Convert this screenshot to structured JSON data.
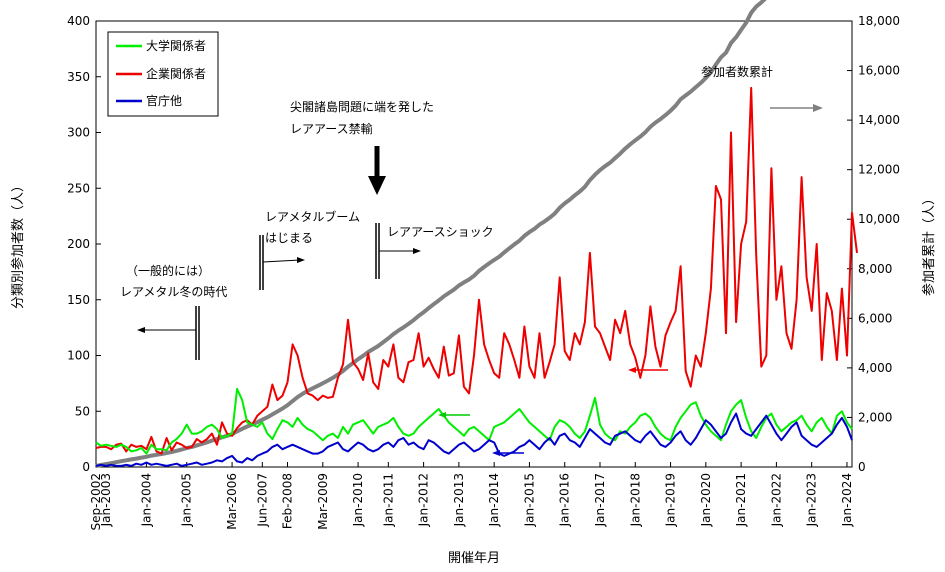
{
  "chart_data": {
    "type": "line",
    "xlabel": "開催年月",
    "ylabel_left": "分類別参加者数（人）",
    "ylabel_right": "参加者累計（人）",
    "ylim_left": [
      0,
      400
    ],
    "ylim_right": [
      0,
      18000
    ],
    "yticks_left": [
      "0",
      "50",
      "100",
      "150",
      "200",
      "250",
      "300",
      "350",
      "400"
    ],
    "yticks_right": [
      "0",
      "2,000",
      "4,000",
      "6,000",
      "8,000",
      "10,000",
      "12,000",
      "14,000",
      "16,000",
      "18,000"
    ],
    "x_tick_labels": [
      "Sep-2002",
      "Jan-2003",
      "Jan-2004",
      "Jan-2005",
      "Mar-2006",
      "Jun-2007",
      "Feb-2008",
      "Mar-2009",
      "Jan-2010",
      "Jan-2011",
      "Jan-2012",
      "Jan-2013",
      "Jan-2014",
      "Jan-2015",
      "Jan-2016",
      "Jan-2017",
      "Jan-2018",
      "Jan-2019",
      "Jan-2020",
      "Jan-2021",
      "Jan-2022",
      "Jan-2023",
      "Jan-2024"
    ],
    "x_tick_index": [
      0,
      2,
      10,
      18,
      27,
      33,
      38,
      45,
      52,
      58,
      65,
      72,
      79,
      86,
      93,
      100,
      107,
      114,
      121,
      128,
      135,
      142,
      149
    ],
    "legend_position": "top-left",
    "grid": false,
    "series": [
      {
        "name": "大学関係者",
        "color": "#00ee00",
        "axis": "left",
        "values": [
          22,
          19,
          20,
          19,
          18,
          20,
          18,
          14,
          15,
          17,
          12,
          20,
          16,
          16,
          15,
          22,
          25,
          30,
          38,
          30,
          30,
          32,
          36,
          38,
          34,
          26,
          28,
          30,
          70,
          60,
          40,
          38,
          36,
          40,
          30,
          25,
          34,
          42,
          40,
          36,
          44,
          38,
          34,
          32,
          28,
          24,
          28,
          30,
          26,
          36,
          30,
          38,
          40,
          42,
          36,
          30,
          36,
          38,
          40,
          44,
          36,
          30,
          28,
          30,
          36,
          40,
          44,
          48,
          52,
          46,
          40,
          36,
          32,
          28,
          34,
          36,
          32,
          28,
          24,
          36,
          38,
          40,
          44,
          48,
          52,
          46,
          40,
          36,
          32,
          28,
          24,
          36,
          42,
          40,
          36,
          30,
          26,
          32,
          46,
          62,
          38,
          30,
          26,
          24,
          32,
          30,
          36,
          40,
          46,
          48,
          44,
          36,
          30,
          26,
          24,
          36,
          44,
          50,
          56,
          58,
          46,
          38,
          32,
          28,
          24,
          38,
          50,
          56,
          60,
          44,
          32,
          26,
          36,
          44,
          48,
          38,
          32,
          36,
          40,
          42,
          46,
          38,
          32,
          40,
          44,
          36,
          30,
          46,
          50,
          40,
          34
        ]
      },
      {
        "name": "企業関係者",
        "color": "#ee0000",
        "axis": "left",
        "values": [
          17,
          18,
          18,
          16,
          20,
          21,
          14,
          20,
          18,
          19,
          16,
          27,
          14,
          12,
          26,
          15,
          22,
          20,
          17,
          18,
          25,
          22,
          25,
          30,
          20,
          40,
          30,
          28,
          35,
          40,
          42,
          38,
          46,
          50,
          54,
          74,
          60,
          64,
          76,
          110,
          100,
          80,
          66,
          64,
          60,
          64,
          62,
          63,
          80,
          92,
          132,
          94,
          88,
          78,
          102,
          76,
          70,
          96,
          90,
          110,
          80,
          76,
          94,
          96,
          120,
          90,
          98,
          88,
          80,
          108,
          82,
          84,
          118,
          72,
          66,
          100,
          150,
          110,
          96,
          84,
          80,
          120,
          110,
          96,
          80,
          126,
          90,
          80,
          120,
          80,
          94,
          110,
          170,
          104,
          96,
          120,
          110,
          130,
          192,
          126,
          120,
          108,
          96,
          132,
          120,
          140,
          110,
          98,
          80,
          100,
          144,
          108,
          90,
          118,
          130,
          140,
          180,
          86,
          72,
          100,
          90,
          120,
          160,
          252,
          240,
          120,
          300,
          130,
          200,
          220,
          340,
          190,
          90,
          100,
          268,
          150,
          180,
          120,
          106,
          150,
          260,
          170,
          140,
          200,
          96,
          156,
          140,
          96,
          160,
          100,
          228,
          192
        ]
      },
      {
        "name": "官庁他",
        "color": "#0000cc",
        "axis": "left",
        "values": [
          1,
          2,
          1,
          2,
          1,
          1,
          2,
          1,
          3,
          2,
          4,
          2,
          3,
          2,
          1,
          2,
          3,
          1,
          2,
          3,
          4,
          2,
          3,
          4,
          6,
          5,
          8,
          10,
          5,
          4,
          8,
          6,
          10,
          12,
          14,
          18,
          20,
          16,
          18,
          20,
          18,
          16,
          14,
          12,
          12,
          14,
          18,
          20,
          22,
          16,
          14,
          18,
          22,
          20,
          16,
          14,
          16,
          20,
          22,
          18,
          24,
          26,
          20,
          22,
          18,
          16,
          24,
          22,
          18,
          14,
          12,
          16,
          20,
          22,
          18,
          14,
          16,
          20,
          24,
          22,
          12,
          10,
          12,
          14,
          18,
          20,
          24,
          20,
          16,
          22,
          26,
          20,
          28,
          30,
          24,
          22,
          18,
          26,
          34,
          30,
          26,
          22,
          20,
          28,
          30,
          32,
          28,
          24,
          22,
          28,
          32,
          26,
          20,
          18,
          22,
          28,
          32,
          24,
          20,
          26,
          34,
          42,
          38,
          32,
          26,
          30,
          40,
          48,
          34,
          30,
          28,
          34,
          40,
          46,
          38,
          30,
          24,
          30,
          36,
          40,
          28,
          24,
          20,
          18,
          22,
          26,
          30,
          38,
          44,
          36,
          24
        ]
      },
      {
        "name": "参加者数累計",
        "color": "#808080",
        "axis": "right"
      }
    ],
    "annotations": [
      {
        "id": "era1",
        "lines": [
          "（一般的には）",
          "レアメタル冬の時代"
        ]
      },
      {
        "id": "era2",
        "lines": [
          "レアメタルブーム",
          "はじまる"
        ]
      },
      {
        "id": "era3",
        "lines": [
          "レアアースショック"
        ]
      },
      {
        "id": "era4",
        "lines": [
          "尖閣諸島問題に端を発した",
          "レアアース禁輸"
        ]
      },
      {
        "id": "cumulative_label",
        "lines": [
          "参加者数累計"
        ]
      }
    ]
  }
}
